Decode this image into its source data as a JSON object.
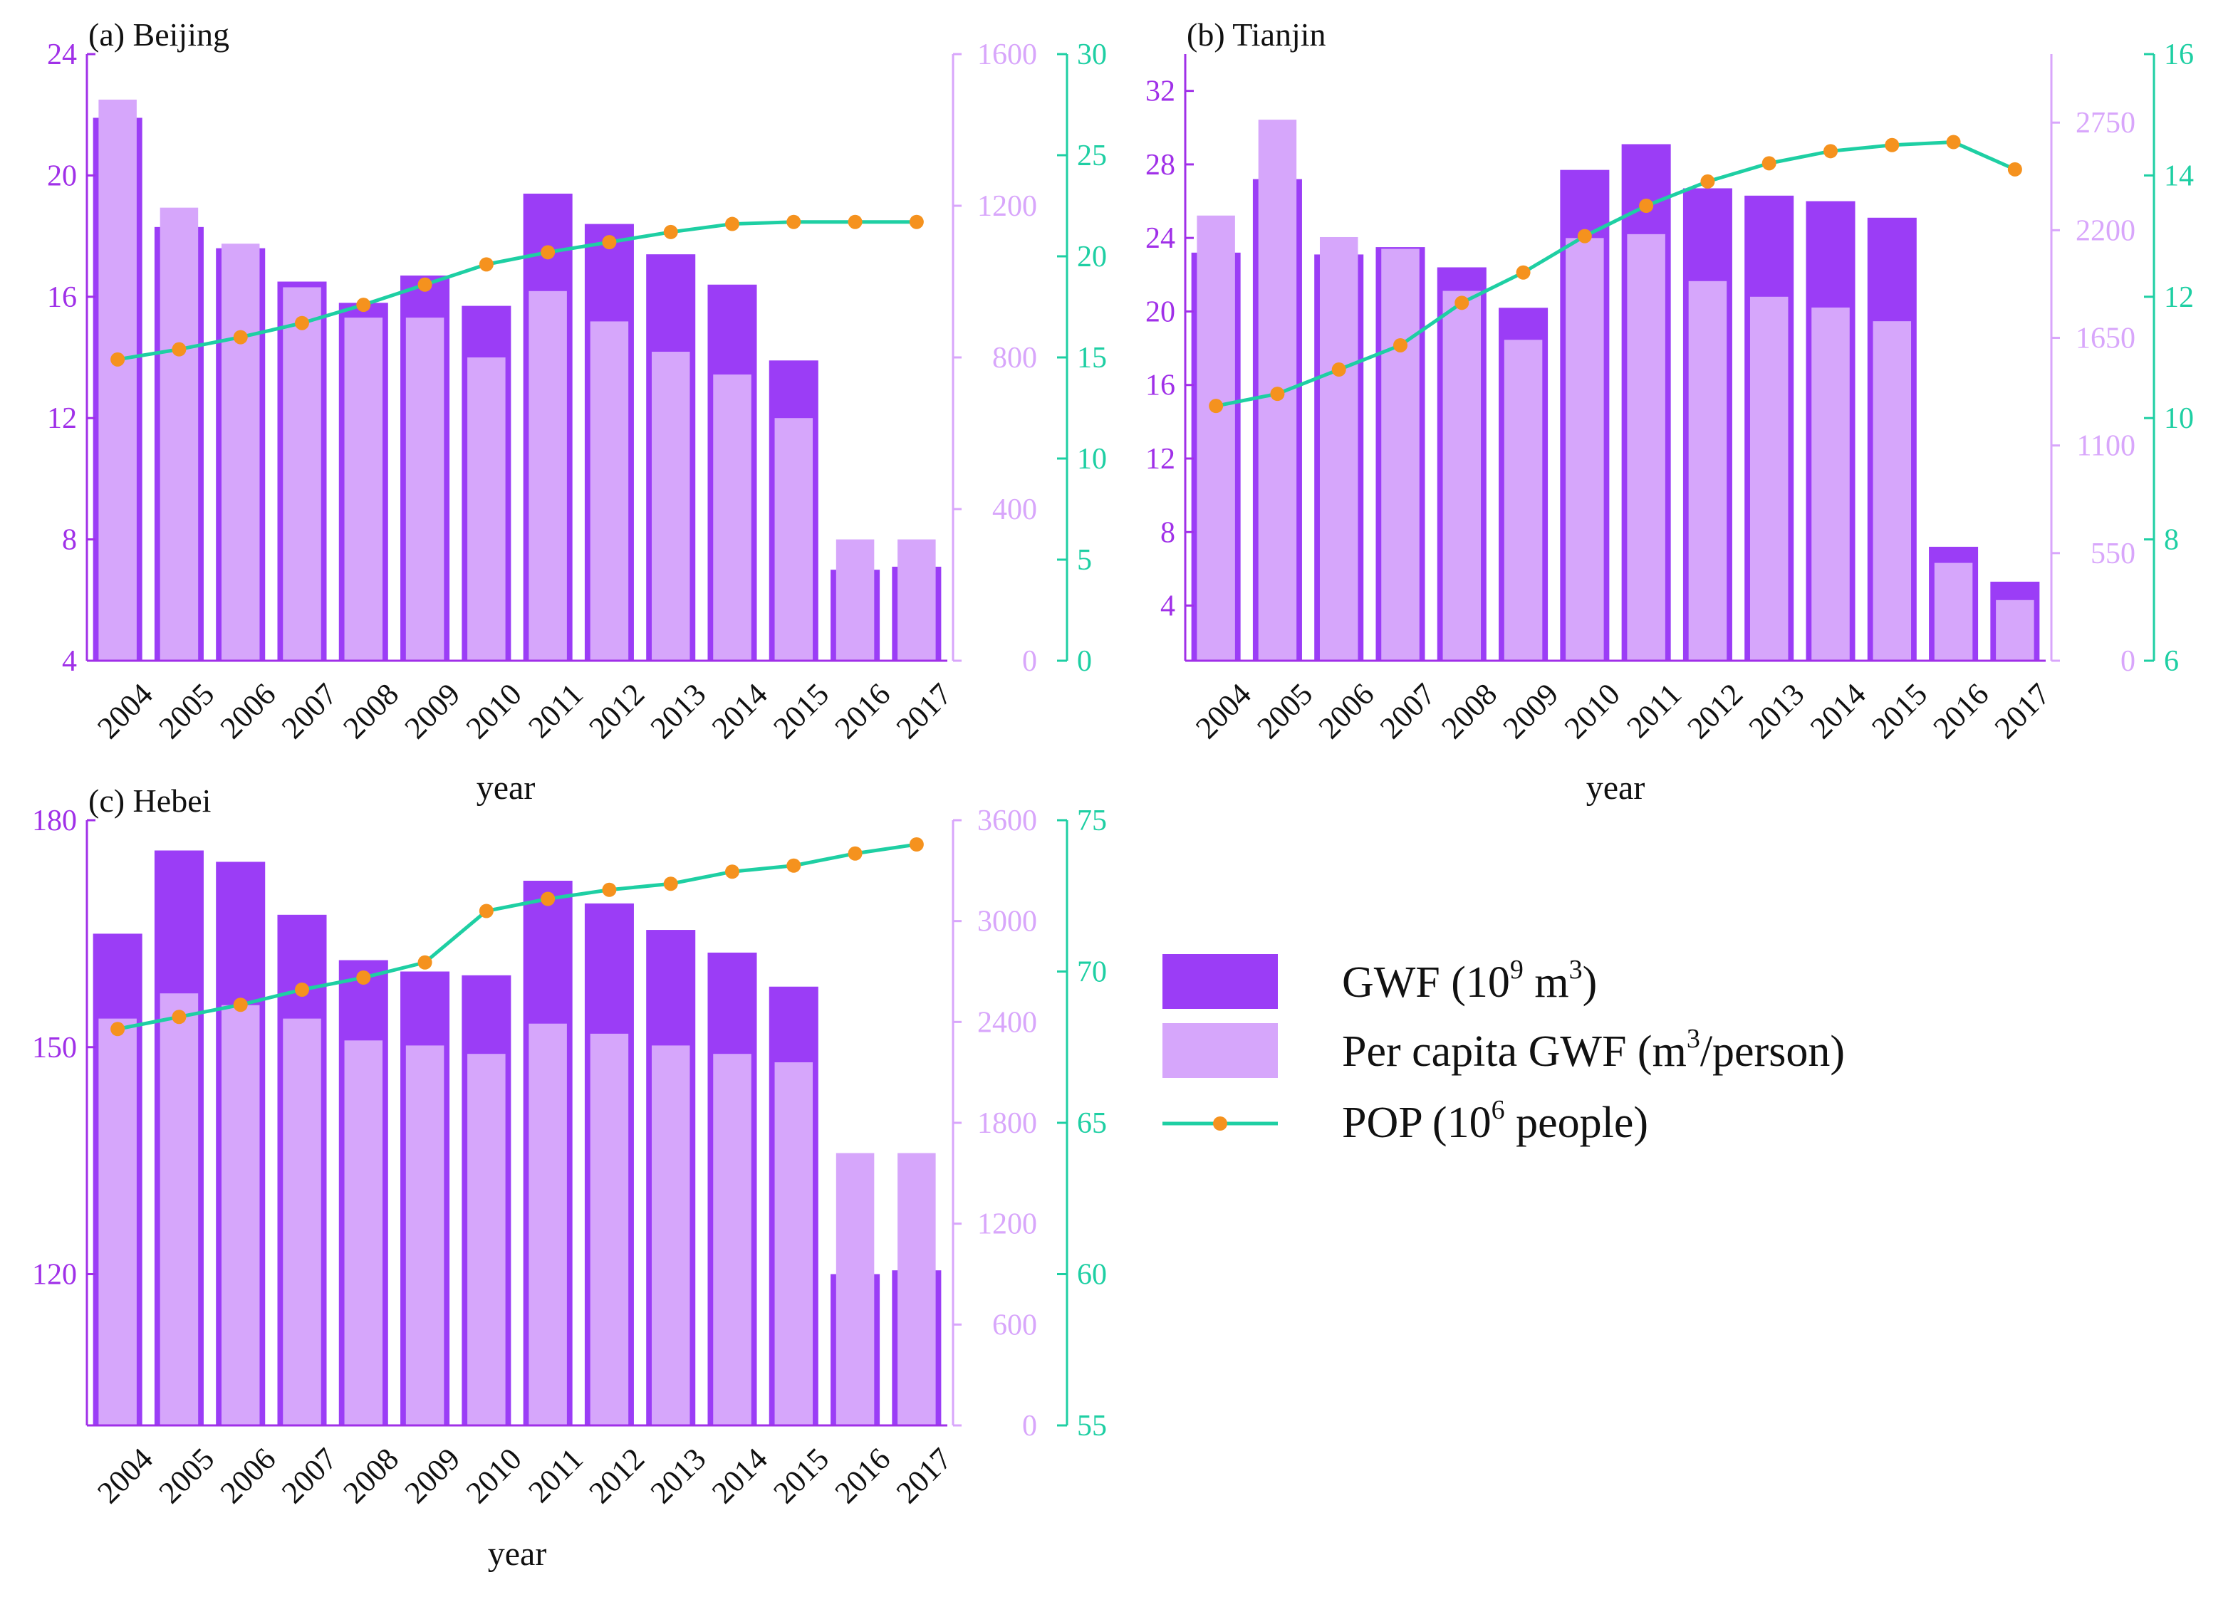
{
  "colors": {
    "gwf": "#9b3df6",
    "per_capita": "#d6a6fb",
    "pop_line": "#1ecfa3",
    "pop_marker": "#f5921e",
    "axis_left": "#a030e8",
    "axis_mid": "#d8a6fb",
    "axis_right": "#1ecfa3",
    "text": "#111111"
  },
  "legend": {
    "gwf_text": "GWF (10",
    "gwf_sup": "9",
    "gwf_mid": " m",
    "gwf_sup2": "3",
    "gwf_end": ")",
    "per_capita_text": "Per capita GWF (m",
    "per_capita_sup": "3",
    "per_capita_end": "/person)",
    "pop_text": "POP (10",
    "pop_sup": "6",
    "pop_end": " people)"
  },
  "chart_data": [
    {
      "type": "bar",
      "title": "(a) Beijing",
      "xlabel": "year",
      "categories": [
        "2004",
        "2005",
        "2006",
        "2007",
        "2008",
        "2009",
        "2010",
        "2011",
        "2012",
        "2013",
        "2014",
        "2015",
        "2016",
        "2017"
      ],
      "series": [
        {
          "name": "GWF (10^9 m^3)",
          "axis": "left",
          "values": [
            21.9,
            18.3,
            17.6,
            16.5,
            15.8,
            16.7,
            15.7,
            19.4,
            18.4,
            17.4,
            16.4,
            13.9,
            7.0,
            7.1
          ]
        },
        {
          "name": "Per capita GWF (m^3/person)",
          "axis": "mid",
          "values": [
            1480,
            1195,
            1100,
            985,
            905,
            905,
            800,
            975,
            895,
            815,
            755,
            640,
            320,
            320
          ]
        },
        {
          "name": "POP (10^6 people)",
          "axis": "right",
          "values": [
            14.9,
            15.4,
            16.0,
            16.7,
            17.6,
            18.6,
            19.6,
            20.2,
            20.7,
            21.2,
            21.6,
            21.7,
            21.7,
            21.7
          ]
        }
      ],
      "axes": {
        "left": {
          "ylim": [
            4,
            24
          ],
          "ticks": [
            "4",
            "8",
            "12",
            "16",
            "20",
            "24"
          ]
        },
        "mid": {
          "ylim": [
            0,
            1600
          ],
          "ticks": [
            "0",
            "400",
            "800",
            "1200",
            "1600"
          ]
        },
        "right": {
          "ylim": [
            0,
            30
          ],
          "ticks": [
            "0",
            "5",
            "10",
            "15",
            "20",
            "25",
            "30"
          ]
        }
      }
    },
    {
      "type": "bar",
      "title": "(b) Tianjin",
      "xlabel": "year",
      "categories": [
        "2004",
        "2005",
        "2006",
        "2007",
        "2008",
        "2009",
        "2010",
        "2011",
        "2012",
        "2013",
        "2014",
        "2015",
        "2016",
        "2017"
      ],
      "series": [
        {
          "name": "GWF (10^9 m^3)",
          "axis": "left",
          "values": [
            23.2,
            27.2,
            23.1,
            23.5,
            22.4,
            20.2,
            27.7,
            29.1,
            26.7,
            26.3,
            26.0,
            25.1,
            7.2,
            5.3
          ]
        },
        {
          "name": "Per capita GWF (m^3/person)",
          "axis": "mid",
          "values": [
            2275,
            2765,
            2165,
            2105,
            1890,
            1640,
            2160,
            2180,
            1940,
            1860,
            1805,
            1735,
            500,
            310
          ]
        },
        {
          "name": "POP (10^6 people)",
          "axis": "right",
          "values": [
            10.2,
            10.4,
            10.8,
            11.2,
            11.9,
            12.4,
            13.0,
            13.5,
            13.9,
            14.2,
            14.4,
            14.5,
            14.55,
            14.1
          ]
        }
      ],
      "axes": {
        "left": {
          "ylim": [
            1,
            34
          ],
          "ticks": [
            "4",
            "8",
            "12",
            "16",
            "20",
            "24",
            "28",
            "32"
          ]
        },
        "mid": {
          "ylim": [
            0,
            3100
          ],
          "ticks": [
            "0",
            "550",
            "1100",
            "1650",
            "2200",
            "2750"
          ]
        },
        "right": {
          "ylim": [
            6,
            16
          ],
          "ticks": [
            "6",
            "8",
            "10",
            "12",
            "14",
            "16"
          ]
        }
      }
    },
    {
      "type": "bar",
      "title": "(c) Hebei",
      "xlabel": "year",
      "categories": [
        "2004",
        "2005",
        "2006",
        "2007",
        "2008",
        "2009",
        "2010",
        "2011",
        "2012",
        "2013",
        "2014",
        "2015",
        "2016",
        "2017"
      ],
      "series": [
        {
          "name": "GWF (10^9 m^3)",
          "axis": "left",
          "values": [
            165,
            176,
            174.5,
            167.5,
            161.5,
            160,
            159.5,
            172,
            169,
            165.5,
            162.5,
            158,
            120,
            120.5
          ]
        },
        {
          "name": "Per capita GWF (m^3/person)",
          "axis": "mid",
          "values": [
            2420,
            2570,
            2500,
            2420,
            2290,
            2260,
            2210,
            2390,
            2330,
            2260,
            2210,
            2160,
            1620,
            1620
          ]
        },
        {
          "name": "POP (10^6 people)",
          "axis": "right",
          "values": [
            68.1,
            68.5,
            68.9,
            69.4,
            69.8,
            70.3,
            72.0,
            72.4,
            72.7,
            72.9,
            73.3,
            73.5,
            73.9,
            74.2
          ]
        }
      ],
      "axes": {
        "left": {
          "ylim": [
            100,
            180
          ],
          "ticks": [
            "120",
            "150",
            "180"
          ]
        },
        "mid": {
          "ylim": [
            0,
            3600
          ],
          "ticks": [
            "0",
            "600",
            "1200",
            "1800",
            "2400",
            "3000",
            "3600"
          ]
        },
        "right": {
          "ylim": [
            55,
            75
          ],
          "ticks": [
            "55",
            "60",
            "65",
            "70",
            "75"
          ]
        }
      }
    }
  ]
}
